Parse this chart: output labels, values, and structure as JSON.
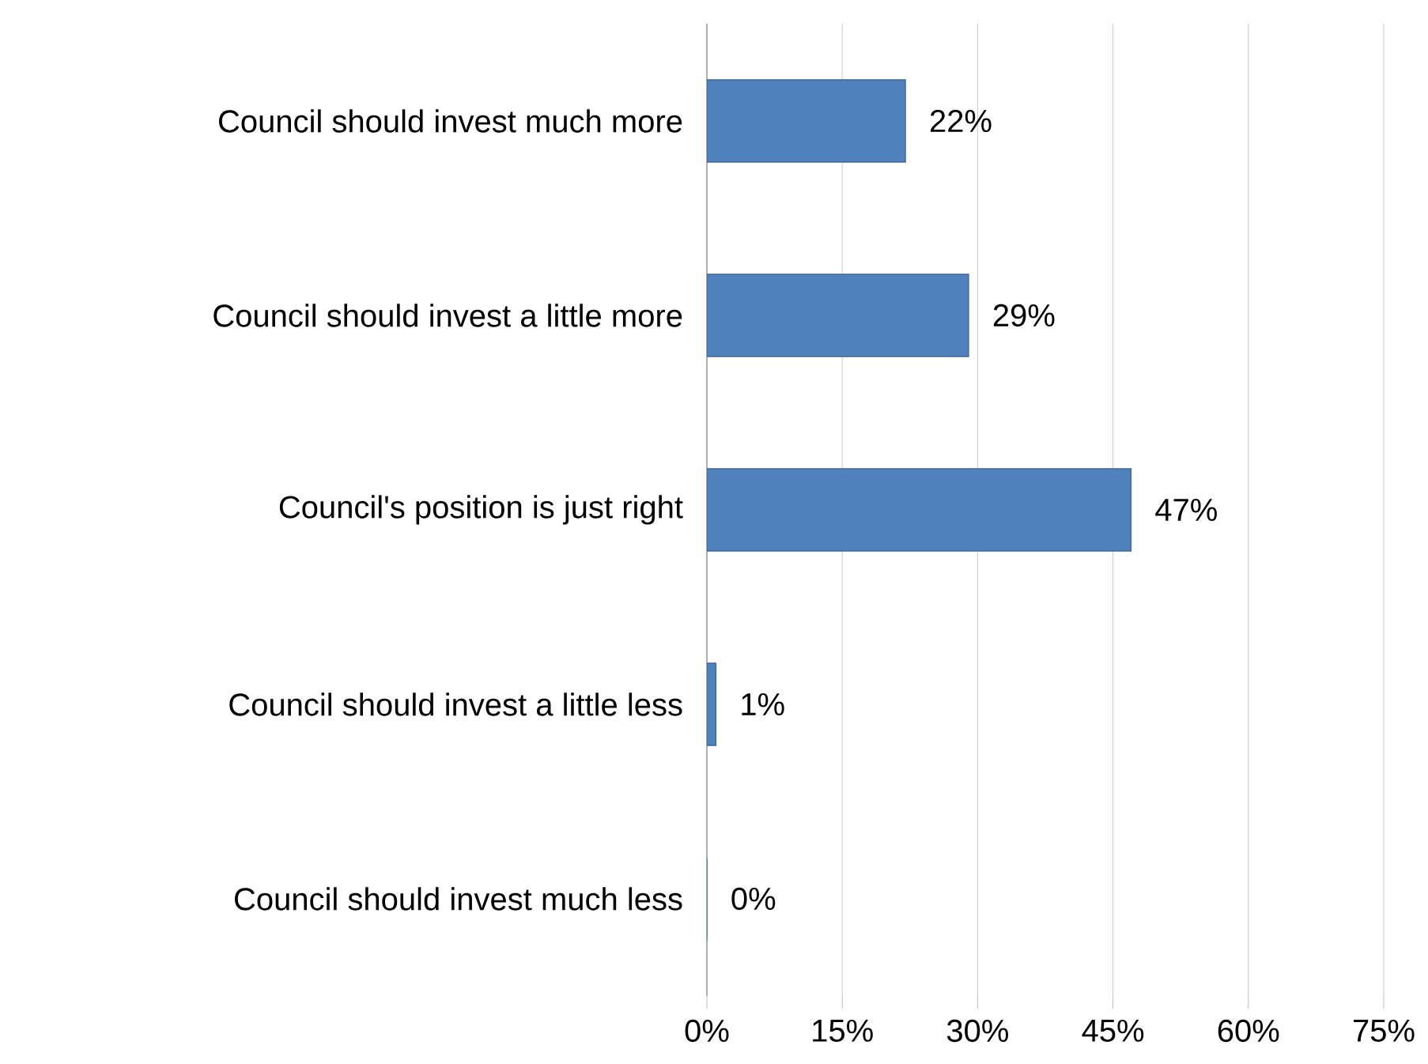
{
  "chart_data": {
    "type": "bar",
    "orientation": "horizontal",
    "categories": [
      "Council should invest much more",
      "Council should invest a little more",
      "Council's position is just right",
      "Council should invest a little less",
      "Council should invest much less"
    ],
    "values": [
      22,
      29,
      47,
      1,
      0
    ],
    "value_labels": [
      "22%",
      "29%",
      "47%",
      "1%",
      "0%"
    ],
    "color": "#4f81bd",
    "xlim": [
      0,
      75
    ],
    "xticks": [
      {
        "value": 0,
        "label": "0%"
      },
      {
        "value": 15,
        "label": "15%"
      },
      {
        "value": 30,
        "label": "30%"
      },
      {
        "value": 45,
        "label": "45%"
      },
      {
        "value": 60,
        "label": "60%"
      },
      {
        "value": 75,
        "label": "75%"
      }
    ],
    "grid": "x"
  }
}
